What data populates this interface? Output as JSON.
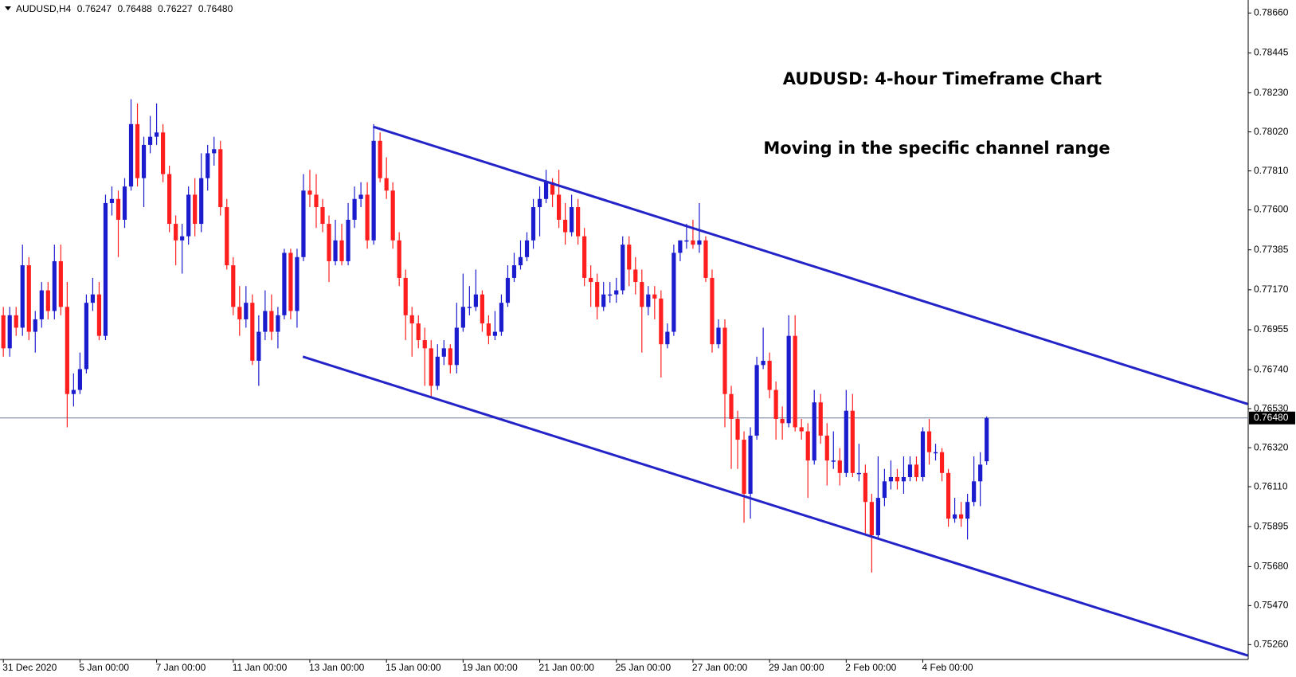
{
  "header": {
    "symbol": "AUDUSD,H4",
    "values": [
      "0.76247",
      "0.76488",
      "0.76227",
      "0.76480"
    ]
  },
  "chart_data": {
    "type": "candlestick",
    "annotations": [
      "AUDUSD: 4-hour Timeframe Chart",
      "Moving in the specific channel range"
    ],
    "up_color": "#1c1ccf",
    "down_color": "#ff1e1e",
    "channel_color": "#2323c8",
    "price_line_color": "#6a7c96",
    "ylim": [
      0.7518,
      0.7873
    ],
    "yticks": [
      {
        "value": 0.7866,
        "label": "0.78660"
      },
      0.78445,
      {
        "value": 0.7823,
        "label": "0.78230"
      },
      {
        "value": 0.7802,
        "label": "0.78020"
      },
      {
        "value": 0.7781,
        "label": "0.77810"
      },
      {
        "value": 0.776,
        "label": "0.77600"
      },
      0.77385,
      {
        "value": 0.7717,
        "label": "0.77170"
      },
      0.76955,
      {
        "value": 0.7674,
        "label": "0.76740"
      },
      {
        "value": 0.7653,
        "label": "0.76530"
      },
      {
        "value": 0.7632,
        "label": "0.76320"
      },
      {
        "value": 0.7611,
        "label": "0.76110"
      },
      0.75895,
      {
        "value": 0.7568,
        "label": "0.75680"
      },
      {
        "value": 0.7547,
        "label": "0.75470"
      },
      {
        "value": 0.7526,
        "label": "0.75260"
      }
    ],
    "price_line": {
      "value": 0.7648,
      "label": "0.76480"
    },
    "channel": [
      {
        "x": [
          57.9,
          194.9
        ],
        "y": [
          0.78048,
          0.76555
        ]
      },
      {
        "x": [
          46.9,
          194.9
        ],
        "y": [
          0.7681,
          0.75201
        ]
      }
    ],
    "categories": [
      "31 Dec 2020",
      null,
      null,
      null,
      null,
      null,
      null,
      null,
      null,
      null,
      null,
      null,
      "5 Jan 00:00",
      null,
      null,
      null,
      null,
      null,
      null,
      null,
      null,
      null,
      null,
      null,
      "7 Jan 00:00",
      null,
      null,
      null,
      null,
      null,
      null,
      null,
      null,
      null,
      null,
      null,
      "11 Jan 00:00",
      null,
      null,
      null,
      null,
      null,
      null,
      null,
      null,
      null,
      null,
      null,
      "13 Jan 00:00",
      null,
      null,
      null,
      null,
      null,
      null,
      null,
      null,
      null,
      null,
      null,
      "15 Jan 00:00",
      null,
      null,
      null,
      null,
      null,
      null,
      null,
      null,
      null,
      null,
      null,
      "19 Jan 00:00",
      null,
      null,
      null,
      null,
      null,
      null,
      null,
      null,
      null,
      null,
      null,
      "21 Jan 00:00",
      null,
      null,
      null,
      null,
      null,
      null,
      null,
      null,
      null,
      null,
      null,
      "25 Jan 00:00",
      null,
      null,
      null,
      null,
      null,
      null,
      null,
      null,
      null,
      null,
      null,
      "27 Jan 00:00",
      null,
      null,
      null,
      null,
      null,
      null,
      null,
      null,
      null,
      null,
      null,
      "29 Jan 00:00",
      null,
      null,
      null,
      null,
      null,
      null,
      null,
      null,
      null,
      null,
      null,
      "2 Feb 00:00",
      null,
      null,
      null,
      null,
      null,
      null,
      null,
      null,
      null,
      null,
      null,
      "4 Feb 00:00",
      null,
      null,
      null,
      null,
      null,
      null,
      null,
      null,
      null,
      null
    ],
    "ohlc": [
      [
        0.77033,
        0.77078,
        0.7681,
        0.76855
      ],
      [
        0.76855,
        0.77078,
        0.7681,
        0.77033
      ],
      [
        0.77033,
        0.77078,
        0.76922,
        0.76966
      ],
      [
        0.76966,
        0.77413,
        0.76922,
        0.77302
      ],
      [
        0.77302,
        0.77346,
        0.76899,
        0.76944
      ],
      [
        0.76944,
        0.77056,
        0.76832,
        0.77011
      ],
      [
        0.77011,
        0.77212,
        0.76966,
        0.77167
      ],
      [
        0.77167,
        0.77212,
        0.77011,
        0.77056
      ],
      [
        0.77056,
        0.77413,
        0.77011,
        0.77324
      ],
      [
        0.77324,
        0.77413,
        0.77033,
        0.77078
      ],
      [
        0.77078,
        0.77212,
        0.7643,
        0.76609
      ],
      [
        0.76609,
        0.7672,
        0.76542,
        0.76631
      ],
      [
        0.76631,
        0.76832,
        0.76609,
        0.76743
      ],
      [
        0.76743,
        0.77145,
        0.7672,
        0.771
      ],
      [
        0.771,
        0.77234,
        0.77056,
        0.77145
      ],
      [
        0.77145,
        0.77212,
        0.76899,
        0.76922
      ],
      [
        0.76922,
        0.77682,
        0.76899,
        0.77637
      ],
      [
        0.77637,
        0.77726,
        0.7757,
        0.77659
      ],
      [
        0.77659,
        0.77704,
        0.77346,
        0.77547
      ],
      [
        0.77547,
        0.77771,
        0.77503,
        0.77726
      ],
      [
        0.77726,
        0.78196,
        0.77704,
        0.78062
      ],
      [
        0.78062,
        0.78173,
        0.77726,
        0.77771
      ],
      [
        0.77771,
        0.77994,
        0.77615,
        0.7795
      ],
      [
        0.7795,
        0.78106,
        0.77905,
        0.77994
      ],
      [
        0.77994,
        0.78173,
        0.7795,
        0.78017
      ],
      [
        0.78017,
        0.78062,
        0.77749,
        0.77793
      ],
      [
        0.77793,
        0.77838,
        0.7748,
        0.77525
      ],
      [
        0.77525,
        0.7757,
        0.77302,
        0.77436
      ],
      [
        0.77436,
        0.77525,
        0.77257,
        0.77458
      ],
      [
        0.77458,
        0.77726,
        0.77413,
        0.77682
      ],
      [
        0.77682,
        0.77771,
        0.77458,
        0.77525
      ],
      [
        0.77525,
        0.77905,
        0.7748,
        0.77771
      ],
      [
        0.77771,
        0.7795,
        0.77704,
        0.77905
      ],
      [
        0.77905,
        0.77994,
        0.77838,
        0.77927
      ],
      [
        0.77927,
        0.77972,
        0.7757,
        0.77615
      ],
      [
        0.77615,
        0.77659,
        0.77279,
        0.77302
      ],
      [
        0.77302,
        0.77346,
        0.77033,
        0.77078
      ],
      [
        0.77078,
        0.7719,
        0.76922,
        0.77011
      ],
      [
        0.77011,
        0.7719,
        0.76966,
        0.771
      ],
      [
        0.771,
        0.77145,
        0.76765,
        0.76788
      ],
      [
        0.76788,
        0.77033,
        0.76653,
        0.76944
      ],
      [
        0.76944,
        0.77167,
        0.76899,
        0.77056
      ],
      [
        0.77056,
        0.77145,
        0.76899,
        0.76944
      ],
      [
        0.76944,
        0.77078,
        0.76855,
        0.77033
      ],
      [
        0.77033,
        0.77391,
        0.77011,
        0.77369
      ],
      [
        0.77369,
        0.77391,
        0.77011,
        0.77056
      ],
      [
        0.77056,
        0.77391,
        0.76966,
        0.77346
      ],
      [
        0.77346,
        0.77793,
        0.77324,
        0.77704
      ],
      [
        0.77704,
        0.77816,
        0.77615,
        0.77682
      ],
      [
        0.77682,
        0.77793,
        0.77503,
        0.77615
      ],
      [
        0.77615,
        0.77659,
        0.7748,
        0.77525
      ],
      [
        0.77525,
        0.7757,
        0.77212,
        0.77324
      ],
      [
        0.77324,
        0.77547,
        0.77302,
        0.77436
      ],
      [
        0.77436,
        0.77525,
        0.77302,
        0.77324
      ],
      [
        0.77324,
        0.77637,
        0.77302,
        0.77547
      ],
      [
        0.77547,
        0.77726,
        0.77503,
        0.77659
      ],
      [
        0.77659,
        0.77749,
        0.77615,
        0.77682
      ],
      [
        0.77682,
        0.77749,
        0.77391,
        0.77436
      ],
      [
        0.77436,
        0.78062,
        0.77413,
        0.77972
      ],
      [
        0.77972,
        0.78017,
        0.77749,
        0.77771
      ],
      [
        0.77771,
        0.77883,
        0.77659,
        0.77704
      ],
      [
        0.77704,
        0.77749,
        0.77391,
        0.77436
      ],
      [
        0.77436,
        0.7748,
        0.7719,
        0.77234
      ],
      [
        0.77234,
        0.77279,
        0.76899,
        0.77033
      ],
      [
        0.77033,
        0.77078,
        0.7681,
        0.76989
      ],
      [
        0.76989,
        0.77033,
        0.76855,
        0.76899
      ],
      [
        0.76899,
        0.76966,
        0.76653,
        0.76855
      ],
      [
        0.76855,
        0.76899,
        0.76586,
        0.76653
      ],
      [
        0.76653,
        0.76877,
        0.76631,
        0.7681
      ],
      [
        0.7681,
        0.76899,
        0.76765,
        0.76855
      ],
      [
        0.76855,
        0.76877,
        0.7672,
        0.76765
      ],
      [
        0.76765,
        0.771,
        0.7672,
        0.76966
      ],
      [
        0.76966,
        0.77257,
        0.76944,
        0.77078
      ],
      [
        0.77078,
        0.7719,
        0.77033,
        0.77078
      ],
      [
        0.77078,
        0.77279,
        0.77056,
        0.77145
      ],
      [
        0.77145,
        0.77167,
        0.76944,
        0.76989
      ],
      [
        0.76989,
        0.77033,
        0.76877,
        0.76922
      ],
      [
        0.76922,
        0.77056,
        0.76899,
        0.76944
      ],
      [
        0.76944,
        0.77145,
        0.76922,
        0.771
      ],
      [
        0.771,
        0.77302,
        0.77078,
        0.77234
      ],
      [
        0.77234,
        0.77369,
        0.77212,
        0.77302
      ],
      [
        0.77302,
        0.77436,
        0.77279,
        0.77346
      ],
      [
        0.77346,
        0.7748,
        0.77324,
        0.77436
      ],
      [
        0.77436,
        0.77659,
        0.77391,
        0.77615
      ],
      [
        0.77615,
        0.77726,
        0.77458,
        0.77659
      ],
      [
        0.77659,
        0.77816,
        0.77637,
        0.77749
      ],
      [
        0.77749,
        0.77771,
        0.77615,
        0.77682
      ],
      [
        0.77682,
        0.77816,
        0.77503,
        0.77547
      ],
      [
        0.77547,
        0.77637,
        0.77413,
        0.7748
      ],
      [
        0.7748,
        0.77682,
        0.77458,
        0.77615
      ],
      [
        0.77615,
        0.77659,
        0.77413,
        0.77458
      ],
      [
        0.77458,
        0.77503,
        0.7719,
        0.77234
      ],
      [
        0.77234,
        0.77302,
        0.77078,
        0.77212
      ],
      [
        0.77212,
        0.77257,
        0.77011,
        0.77078
      ],
      [
        0.77078,
        0.77212,
        0.77056,
        0.77145
      ],
      [
        0.77145,
        0.77212,
        0.771,
        0.77145
      ],
      [
        0.77145,
        0.77234,
        0.771,
        0.77167
      ],
      [
        0.77167,
        0.77458,
        0.77145,
        0.77413
      ],
      [
        0.77413,
        0.77458,
        0.7719,
        0.77279
      ],
      [
        0.77279,
        0.77346,
        0.77145,
        0.77212
      ],
      [
        0.77212,
        0.77279,
        0.76832,
        0.77078
      ],
      [
        0.77078,
        0.7719,
        0.77033,
        0.77145
      ],
      [
        0.77145,
        0.7719,
        0.77011,
        0.77123
      ],
      [
        0.77123,
        0.77167,
        0.76698,
        0.76877
      ],
      [
        0.76877,
        0.76989,
        0.76855,
        0.76944
      ],
      [
        0.76944,
        0.77413,
        0.76922,
        0.77369
      ],
      [
        0.77369,
        0.77436,
        0.77324,
        0.77436
      ],
      [
        0.77436,
        0.77525,
        0.77391,
        0.77436
      ],
      [
        0.77436,
        0.77547,
        0.77391,
        0.77413
      ],
      [
        0.77413,
        0.77637,
        0.77369,
        0.77436
      ],
      [
        0.77436,
        0.77458,
        0.77212,
        0.77234
      ],
      [
        0.77234,
        0.77279,
        0.76832,
        0.76877
      ],
      [
        0.76877,
        0.77011,
        0.76855,
        0.76966
      ],
      [
        0.76966,
        0.77011,
        0.7643,
        0.76609
      ],
      [
        0.76609,
        0.76653,
        0.76206,
        0.76475
      ],
      [
        0.76475,
        0.76519,
        0.76206,
        0.76363
      ],
      [
        0.76363,
        0.76408,
        0.75916,
        0.76072
      ],
      [
        0.76072,
        0.7643,
        0.75938,
        0.76385
      ],
      [
        0.76385,
        0.7681,
        0.76363,
        0.76765
      ],
      [
        0.76765,
        0.76966,
        0.76743,
        0.76788
      ],
      [
        0.76788,
        0.76832,
        0.76586,
        0.76631
      ],
      [
        0.76631,
        0.76676,
        0.76363,
        0.76475
      ],
      [
        0.76475,
        0.76542,
        0.76363,
        0.76452
      ],
      [
        0.76452,
        0.77033,
        0.7643,
        0.76922
      ],
      [
        0.76922,
        0.77033,
        0.76408,
        0.7643
      ],
      [
        0.7643,
        0.76475,
        0.76363,
        0.76408
      ],
      [
        0.76408,
        0.76452,
        0.7605,
        0.76251
      ],
      [
        0.76251,
        0.76631,
        0.76229,
        0.76564
      ],
      [
        0.76564,
        0.76609,
        0.76341,
        0.76385
      ],
      [
        0.76385,
        0.76452,
        0.76117,
        0.76251
      ],
      [
        0.76251,
        0.76408,
        0.76206,
        0.76251
      ],
      [
        0.76251,
        0.76318,
        0.76117,
        0.76184
      ],
      [
        0.76184,
        0.76631,
        0.76162,
        0.76519
      ],
      [
        0.76519,
        0.76609,
        0.76162,
        0.76184
      ],
      [
        0.76184,
        0.76341,
        0.76139,
        0.76184
      ],
      [
        0.76184,
        0.76229,
        0.75849,
        0.76028
      ],
      [
        0.76028,
        0.76072,
        0.75648,
        0.75849
      ],
      [
        0.75849,
        0.76273,
        0.75826,
        0.7605
      ],
      [
        0.7605,
        0.76206,
        0.76005,
        0.76139
      ],
      [
        0.76139,
        0.76251,
        0.76095,
        0.76162
      ],
      [
        0.76162,
        0.76206,
        0.76095,
        0.76139
      ],
      [
        0.76139,
        0.76273,
        0.76072,
        0.76162
      ],
      [
        0.76162,
        0.76273,
        0.76139,
        0.76229
      ],
      [
        0.76229,
        0.76273,
        0.76139,
        0.76162
      ],
      [
        0.76162,
        0.7643,
        0.76139,
        0.76408
      ],
      [
        0.76408,
        0.76475,
        0.76229,
        0.76296
      ],
      [
        0.76296,
        0.76341,
        0.76251,
        0.76296
      ],
      [
        0.76296,
        0.76318,
        0.76139,
        0.76184
      ],
      [
        0.76184,
        0.76206,
        0.75894,
        0.75938
      ],
      [
        0.75938,
        0.7605,
        0.75916,
        0.75961
      ],
      [
        0.75961,
        0.76028,
        0.75894,
        0.75938
      ],
      [
        0.75938,
        0.76072,
        0.75826,
        0.76028
      ],
      [
        0.76028,
        0.76273,
        0.76005,
        0.76139
      ],
      [
        0.76139,
        0.76296,
        0.76005,
        0.76229
      ],
      [
        0.76247,
        0.76488,
        0.76227,
        0.7648
      ]
    ]
  }
}
